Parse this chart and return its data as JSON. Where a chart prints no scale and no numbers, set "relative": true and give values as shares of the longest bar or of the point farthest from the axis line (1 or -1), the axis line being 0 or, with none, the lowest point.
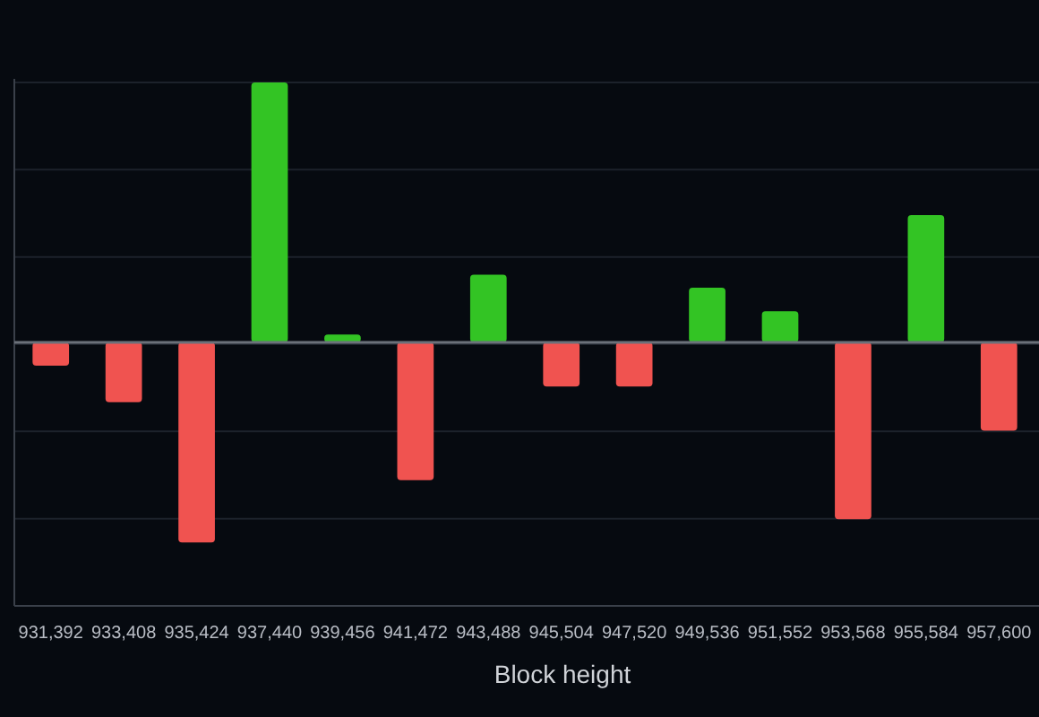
{
  "chart_data": {
    "type": "bar",
    "xlabel": "Block height",
    "relative": true,
    "grid": "y",
    "categories": [
      "931,392",
      "933,408",
      "935,424",
      "937,440",
      "939,456",
      "941,472",
      "943,488",
      "945,504",
      "947,520",
      "949,536",
      "951,552",
      "953,568",
      "955,584",
      "957,600"
    ],
    "values": [
      -0.09,
      -0.23,
      -0.77,
      1,
      0.03,
      -0.53,
      0.26,
      -0.17,
      -0.17,
      0.21,
      0.12,
      -0.68,
      0.49,
      -0.34
    ],
    "colors": [
      "#f05350",
      "#f05350",
      "#f05350",
      "#33c424",
      "#33c424",
      "#f05350",
      "#33c424",
      "#f05350",
      "#f05350",
      "#33c424",
      "#33c424",
      "#f05350",
      "#33c424",
      "#f05350"
    ]
  }
}
